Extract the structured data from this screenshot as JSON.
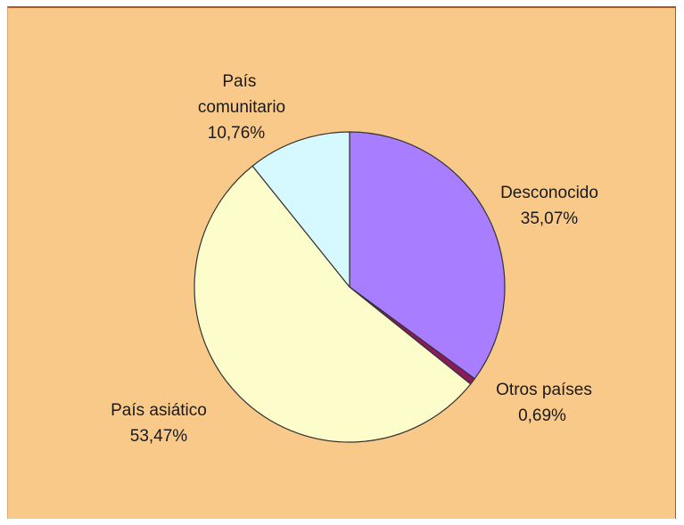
{
  "colors": {
    "background": "#f9c98a",
    "frame": "#b5551b",
    "slice_stroke": "#333333"
  },
  "chart_data": {
    "type": "pie",
    "start_angle_deg": 0,
    "direction": "clockwise",
    "slices": [
      {
        "label": "Desconocido",
        "value_text": "35,07%",
        "value": 35.07,
        "color": "#a97dff"
      },
      {
        "label": "Otros países",
        "value_text": "0,69%",
        "value": 0.69,
        "color": "#8b1a5c"
      },
      {
        "label": "País asiático",
        "value_text": "53,47%",
        "value": 53.47,
        "color": "#fdfdcc"
      },
      {
        "label": "País comunitario",
        "value_text": "10,76%",
        "value": 10.76,
        "color": "#d6f8ff"
      }
    ]
  }
}
